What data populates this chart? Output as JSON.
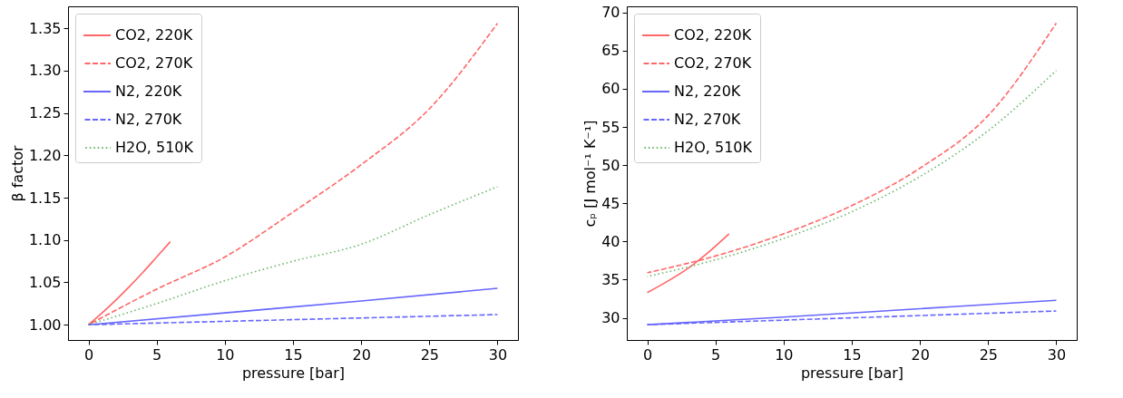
{
  "chart_data": [
    {
      "type": "line",
      "xlabel": "pressure [bar]",
      "ylabel": "β factor",
      "legend": "top left",
      "grid": false,
      "xlim": [
        -1.5,
        31.5
      ],
      "xticks": [
        0,
        5,
        10,
        15,
        20,
        25,
        30
      ],
      "ylim": [
        0.982,
        1.376
      ],
      "yticks": [
        {
          "value": 1,
          "label": "1.00"
        },
        1.05,
        {
          "value": 1.1,
          "label": "1.10"
        },
        1.15,
        {
          "value": 1.2,
          "label": "1.20"
        },
        1.25,
        {
          "value": 1.3,
          "label": "1.30"
        },
        1.35
      ],
      "series": [
        {
          "name": "CO2, 220K",
          "color": "#ff6666",
          "line_style": "solid",
          "x": [
            0,
            1,
            2,
            3,
            4,
            5,
            6
          ],
          "values": [
            1.0,
            1.014,
            1.029,
            1.045,
            1.062,
            1.08,
            1.098
          ]
        },
        {
          "name": "CO2, 270K",
          "color": "#ff6666",
          "line_style": "dashed",
          "x": [
            0,
            5,
            10,
            15,
            20,
            25,
            30
          ],
          "values": [
            1.0,
            1.042,
            1.08,
            1.133,
            1.189,
            1.255,
            1.356
          ]
        },
        {
          "name": "N2, 220K",
          "color": "#6666ff",
          "line_style": "solid",
          "x": [
            0,
            10,
            20,
            30
          ],
          "values": [
            1.0,
            1.014,
            1.028,
            1.043
          ]
        },
        {
          "name": "N2, 270K",
          "color": "#6666ff",
          "line_style": "dashed",
          "x": [
            0,
            10,
            20,
            30
          ],
          "values": [
            1.0,
            1.004,
            1.008,
            1.012
          ]
        },
        {
          "name": "H2O, 510K",
          "color": "#66b366",
          "line_style": "dotted",
          "x": [
            0,
            5,
            10,
            15,
            20,
            25,
            30
          ],
          "values": [
            1.0,
            1.025,
            1.052,
            1.075,
            1.095,
            1.13,
            1.163
          ]
        }
      ]
    },
    {
      "type": "line",
      "xlabel": "pressure [bar]",
      "ylabel": "cₚ [J mol⁻¹ K⁻¹]",
      "legend": "top left",
      "grid": false,
      "xlim": [
        -1.5,
        31.5
      ],
      "xticks": [
        0,
        5,
        10,
        15,
        20,
        25,
        30
      ],
      "ylim": [
        27.1,
        70.8
      ],
      "yticks": [
        30,
        35,
        40,
        45,
        50,
        55,
        60,
        65,
        70
      ],
      "series": [
        {
          "name": "CO2, 220K",
          "color": "#ff6666",
          "line_style": "solid",
          "x": [
            0,
            1.5,
            3,
            4.5,
            6
          ],
          "values": [
            33.3,
            34.8,
            36.5,
            38.6,
            41.0
          ]
        },
        {
          "name": "CO2, 270K",
          "color": "#ff6666",
          "line_style": "dashed",
          "x": [
            0,
            5,
            10,
            15,
            20,
            25,
            30
          ],
          "values": [
            35.9,
            38.1,
            41.0,
            44.7,
            49.6,
            56.5,
            68.6
          ]
        },
        {
          "name": "N2, 220K",
          "color": "#6666ff",
          "line_style": "solid",
          "x": [
            0,
            10,
            20,
            30
          ],
          "values": [
            29.1,
            30.1,
            31.2,
            32.3
          ]
        },
        {
          "name": "N2, 270K",
          "color": "#6666ff",
          "line_style": "dashed",
          "x": [
            0,
            10,
            20,
            30
          ],
          "values": [
            29.1,
            29.7,
            30.3,
            30.9
          ]
        },
        {
          "name": "H2O, 510K",
          "color": "#66b366",
          "line_style": "dotted",
          "x": [
            0,
            5,
            10,
            15,
            20,
            25,
            30
          ],
          "values": [
            35.4,
            37.6,
            40.4,
            43.9,
            48.5,
            54.5,
            62.4
          ]
        }
      ]
    }
  ]
}
